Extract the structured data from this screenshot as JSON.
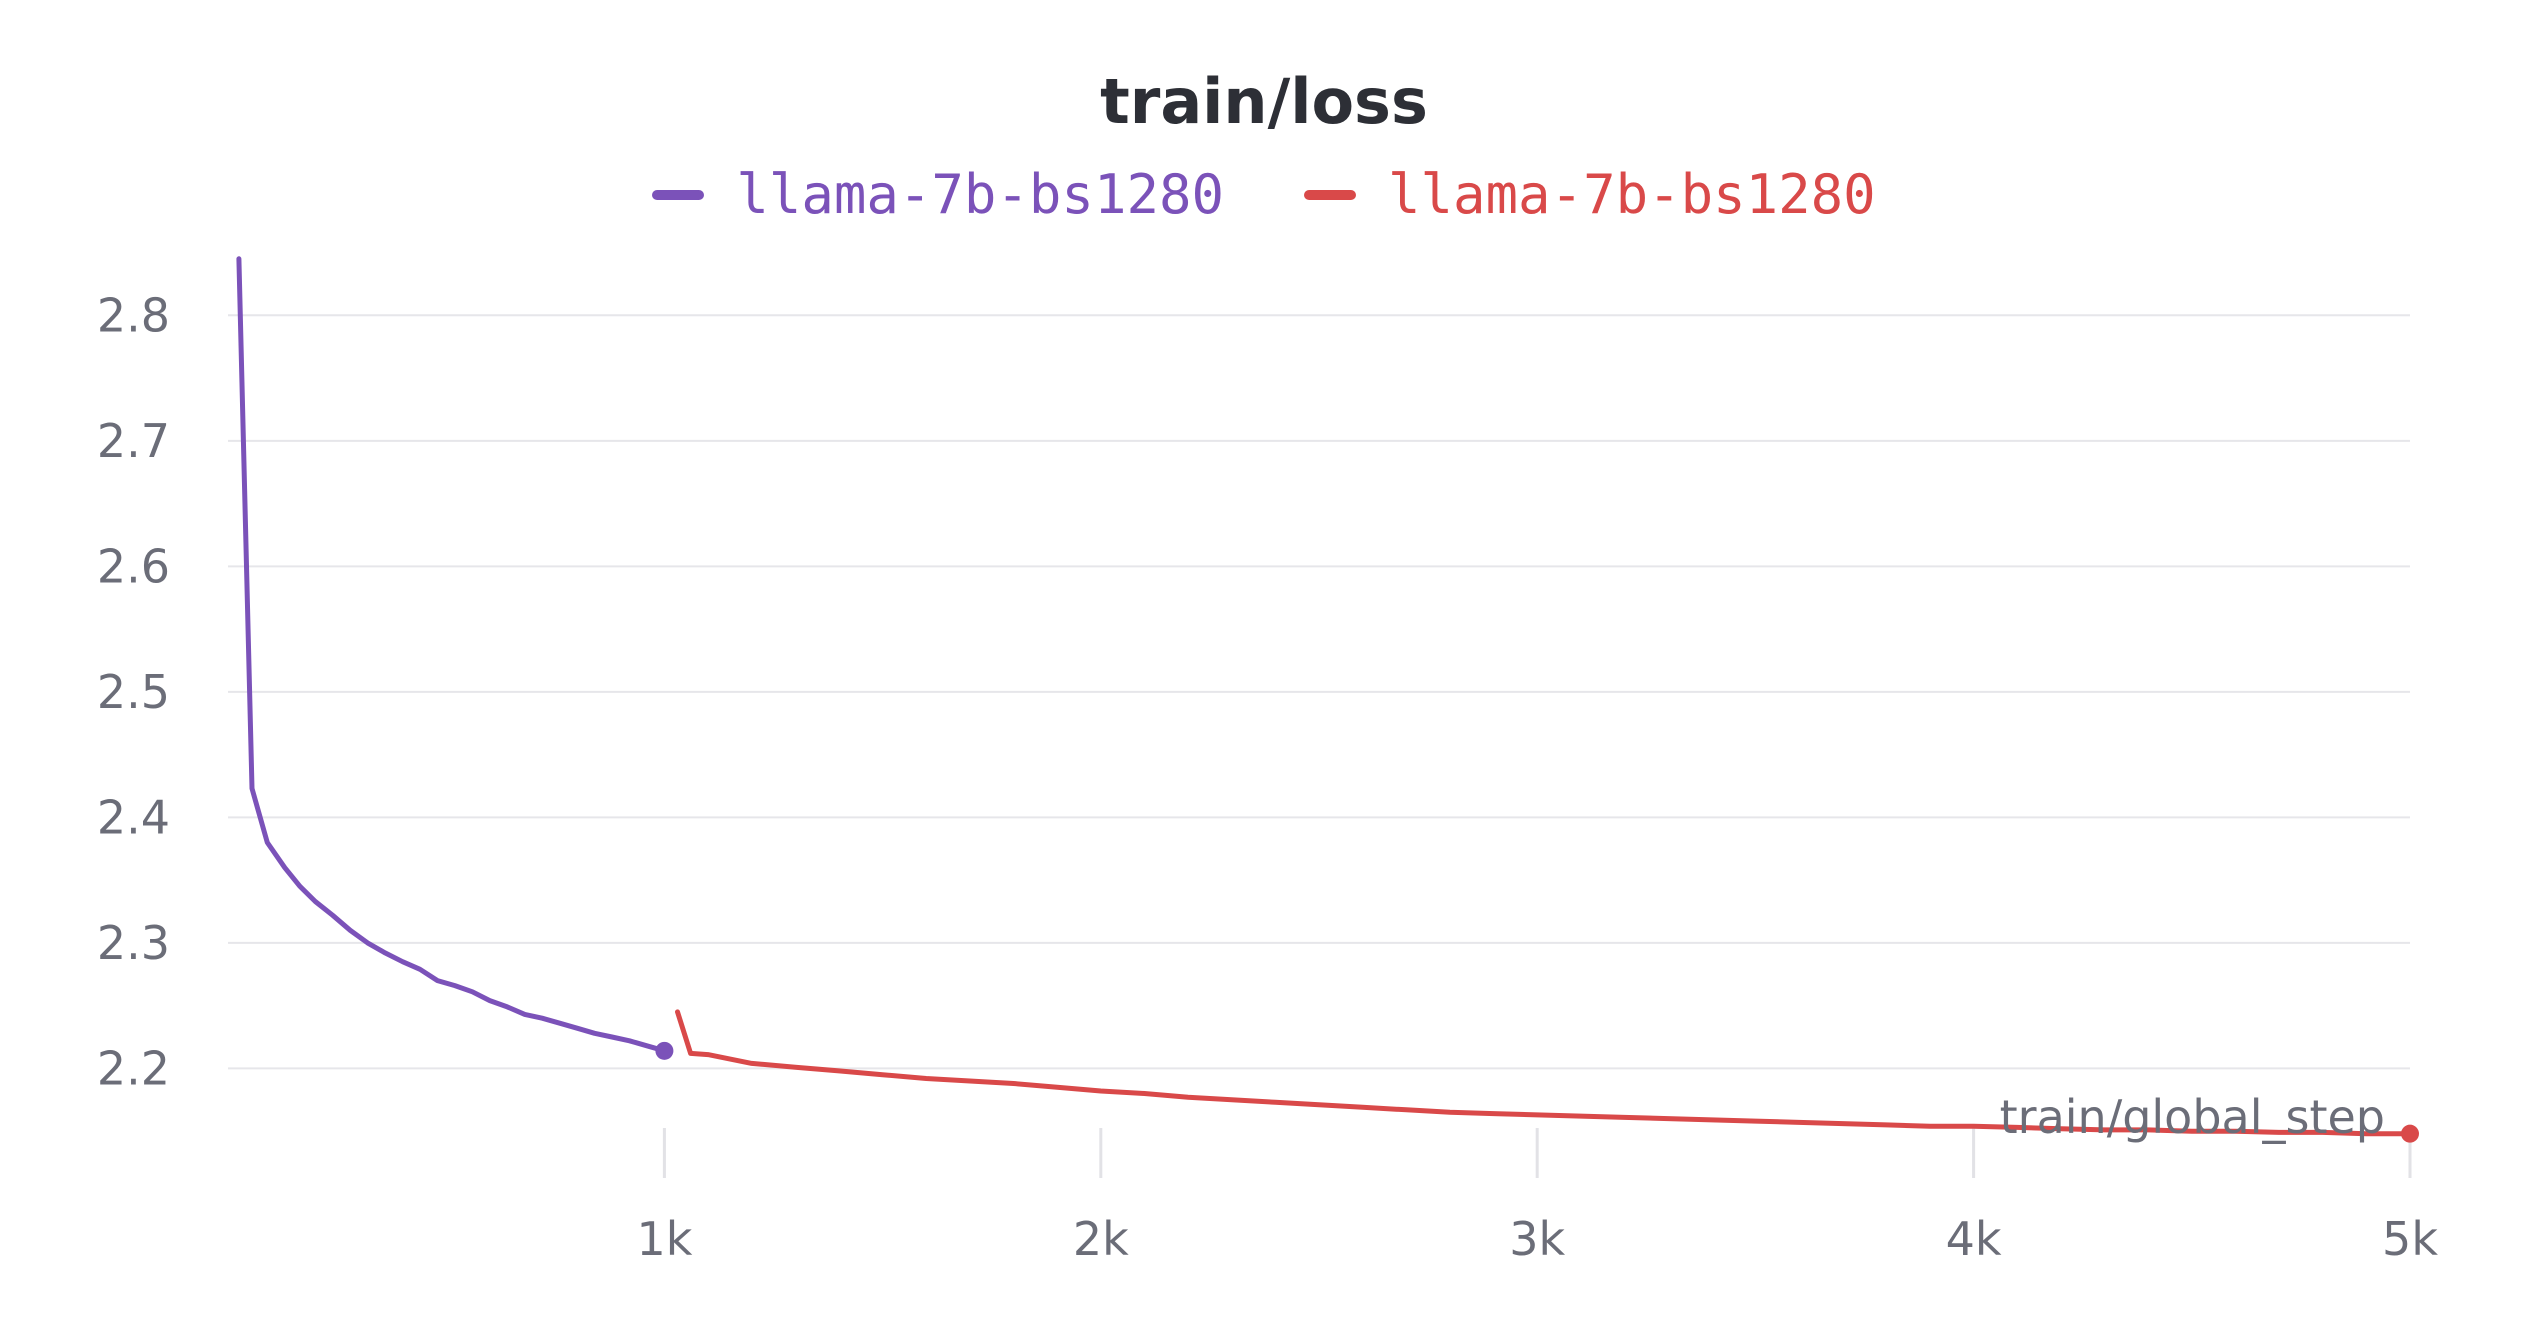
{
  "chart_data": {
    "type": "line",
    "title": "train/loss",
    "xlabel": "train/global_step",
    "ylabel": "",
    "xlim": [
      0,
      5000
    ],
    "ylim": [
      2.135,
      2.86
    ],
    "grid": true,
    "legend_position": "top-center",
    "x_ticks": [
      1000,
      2000,
      3000,
      4000,
      5000
    ],
    "x_tick_labels": [
      "1k",
      "2k",
      "3k",
      "4k",
      "5k"
    ],
    "y_ticks": [
      2.2,
      2.3,
      2.4,
      2.5,
      2.6,
      2.7,
      2.8
    ],
    "y_tick_labels": [
      "2.2",
      "2.3",
      "2.4",
      "2.5",
      "2.6",
      "2.7",
      "2.8"
    ],
    "series": [
      {
        "name": "llama-7b-bs1280",
        "color": "#7b52b9",
        "end_marker": true,
        "x": [
          25,
          55,
          90,
          130,
          165,
          200,
          240,
          280,
          320,
          360,
          400,
          440,
          480,
          520,
          560,
          600,
          640,
          680,
          720,
          760,
          800,
          840,
          880,
          920,
          960,
          1000
        ],
        "y": [
          2.845,
          2.423,
          2.38,
          2.36,
          2.345,
          2.333,
          2.322,
          2.31,
          2.3,
          2.292,
          2.285,
          2.279,
          2.27,
          2.266,
          2.261,
          2.254,
          2.249,
          2.243,
          2.24,
          2.236,
          2.232,
          2.228,
          2.225,
          2.222,
          2.218,
          2.214
        ]
      },
      {
        "name": "llama-7b-bs1280",
        "color": "#d94949",
        "end_marker": true,
        "x": [
          1030,
          1060,
          1100,
          1200,
          1300,
          1400,
          1500,
          1600,
          1700,
          1800,
          1900,
          2000,
          2100,
          2200,
          2300,
          2400,
          2500,
          2600,
          2700,
          2800,
          2900,
          3000,
          3100,
          3200,
          3300,
          3400,
          3500,
          3600,
          3700,
          3800,
          3900,
          4000,
          4100,
          4200,
          4300,
          4400,
          4500,
          4600,
          4700,
          4800,
          4900,
          5000
        ],
        "y": [
          2.245,
          2.212,
          2.211,
          2.204,
          2.201,
          2.198,
          2.195,
          2.192,
          2.19,
          2.188,
          2.185,
          2.182,
          2.18,
          2.177,
          2.175,
          2.173,
          2.171,
          2.169,
          2.167,
          2.165,
          2.164,
          2.163,
          2.162,
          2.161,
          2.16,
          2.159,
          2.158,
          2.157,
          2.156,
          2.155,
          2.154,
          2.154,
          2.153,
          2.152,
          2.151,
          2.151,
          2.15,
          2.15,
          2.149,
          2.149,
          2.148,
          2.148
        ]
      }
    ]
  }
}
